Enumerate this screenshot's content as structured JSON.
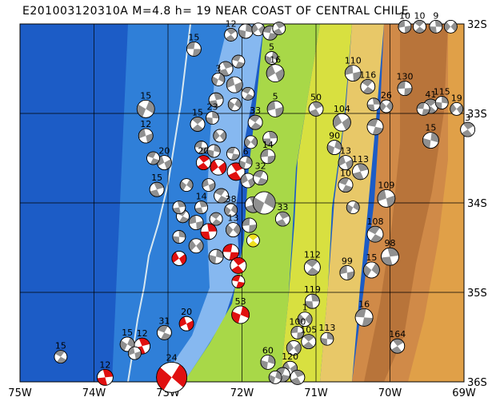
{
  "title": "E201003120310A  M=4.8  h= 19  NEAR COAST OF CENTRAL CHILE",
  "map": {
    "lon_range": [
      -75,
      -69
    ],
    "lat_range": [
      -36,
      -32
    ],
    "lon_ticks": [
      {
        "value": -75,
        "label": "75W"
      },
      {
        "value": -74,
        "label": "74W"
      },
      {
        "value": -73,
        "label": "73W"
      },
      {
        "value": -72,
        "label": "72W"
      },
      {
        "value": -71,
        "label": "71W"
      },
      {
        "value": -70,
        "label": "70W"
      },
      {
        "value": -69,
        "label": "69W"
      }
    ],
    "lat_ticks": [
      {
        "value": -32,
        "label": "32S"
      },
      {
        "value": -33,
        "label": "33S"
      },
      {
        "value": -34,
        "label": "34S"
      },
      {
        "value": -35,
        "label": "35S"
      },
      {
        "value": -36,
        "label": "36S"
      }
    ],
    "colors": {
      "deep_ocean": "#1c5cc6",
      "ocean": "#2f7fd8",
      "shelf": "#86b8f0",
      "coast_low": "#a8d848",
      "lowland": "#d8e040",
      "hills": "#e8c868",
      "mountains": "#d08a48",
      "high_mountains": "#b8743a",
      "plateau": "#e0a048",
      "trench": "#d8e8f0",
      "focal_compression": "#e01010",
      "focal_tension": "#ffffff",
      "focal_gray": "#909090",
      "focal_yellow": "#f0e020"
    },
    "events": [
      {
        "lon": -72.65,
        "lat": -32.28,
        "size": 9,
        "depth": "15",
        "color": "gray"
      },
      {
        "lon": -72.15,
        "lat": -32.12,
        "size": 8,
        "depth": "12",
        "color": "gray"
      },
      {
        "lon": -71.95,
        "lat": -32.08,
        "size": 9,
        "depth": "",
        "color": "gray"
      },
      {
        "lon": -71.78,
        "lat": -32.06,
        "size": 8,
        "depth": "",
        "color": "gray"
      },
      {
        "lon": -71.62,
        "lat": -32.1,
        "size": 9,
        "depth": "",
        "color": "gray"
      },
      {
        "lon": -71.5,
        "lat": -32.05,
        "size": 8,
        "depth": "",
        "color": "gray"
      },
      {
        "lon": -71.6,
        "lat": -32.38,
        "size": 8,
        "depth": "5",
        "color": "gray"
      },
      {
        "lon": -71.55,
        "lat": -32.55,
        "size": 11,
        "depth": "16",
        "color": "gray"
      },
      {
        "lon": -72.05,
        "lat": -32.42,
        "size": 8,
        "depth": "",
        "color": "gray"
      },
      {
        "lon": -72.22,
        "lat": -32.5,
        "size": 9,
        "depth": "",
        "color": "gray"
      },
      {
        "lon": -72.32,
        "lat": -32.62,
        "size": 8,
        "depth": "3",
        "color": "gray"
      },
      {
        "lon": -72.1,
        "lat": -32.68,
        "size": 10,
        "depth": "",
        "color": "gray"
      },
      {
        "lon": -71.92,
        "lat": -32.78,
        "size": 8,
        "depth": "",
        "color": "gray"
      },
      {
        "lon": -72.35,
        "lat": -32.85,
        "size": 9,
        "depth": "",
        "color": "gray"
      },
      {
        "lon": -72.1,
        "lat": -32.9,
        "size": 8,
        "depth": "",
        "color": "gray"
      },
      {
        "lon": -71.55,
        "lat": -32.95,
        "size": 10,
        "depth": "5",
        "color": "gray"
      },
      {
        "lon": -71.82,
        "lat": -33.1,
        "size": 9,
        "depth": "33",
        "color": "gray"
      },
      {
        "lon": -71.62,
        "lat": -33.28,
        "size": 9,
        "depth": "",
        "color": "gray"
      },
      {
        "lon": -71.88,
        "lat": -33.32,
        "size": 8,
        "depth": "",
        "color": "gray"
      },
      {
        "lon": -71.65,
        "lat": -33.48,
        "size": 9,
        "depth": "14",
        "color": "gray"
      },
      {
        "lon": -72.6,
        "lat": -33.12,
        "size": 9,
        "depth": "15",
        "color": "gray"
      },
      {
        "lon": -72.4,
        "lat": -33.05,
        "size": 8,
        "depth": "23",
        "color": "gray"
      },
      {
        "lon": -72.3,
        "lat": -33.25,
        "size": 8,
        "depth": "",
        "color": "gray"
      },
      {
        "lon": -72.55,
        "lat": -33.38,
        "size": 8,
        "depth": "",
        "color": "gray"
      },
      {
        "lon": -72.52,
        "lat": -33.55,
        "size": 9,
        "depth": "20",
        "color": "red"
      },
      {
        "lon": -72.38,
        "lat": -33.42,
        "size": 8,
        "depth": "",
        "color": "gray"
      },
      {
        "lon": -72.32,
        "lat": -33.6,
        "size": 10,
        "depth": "",
        "color": "red"
      },
      {
        "lon": -72.12,
        "lat": -33.45,
        "size": 8,
        "depth": "",
        "color": "gray"
      },
      {
        "lon": -72.08,
        "lat": -33.65,
        "size": 11,
        "depth": "",
        "color": "red"
      },
      {
        "lon": -71.95,
        "lat": -33.55,
        "size": 8,
        "depth": "6",
        "color": "gray"
      },
      {
        "lon": -71.92,
        "lat": -33.75,
        "size": 9,
        "depth": "",
        "color": "gray"
      },
      {
        "lon": -71.75,
        "lat": -33.72,
        "size": 9,
        "depth": "32",
        "color": "gray"
      },
      {
        "lon": -71.85,
        "lat": -34.02,
        "size": 10,
        "depth": "",
        "color": "gray"
      },
      {
        "lon": -71.7,
        "lat": -34.0,
        "size": 14,
        "depth": "",
        "color": "gray"
      },
      {
        "lon": -72.45,
        "lat": -33.8,
        "size": 8,
        "depth": "",
        "color": "gray"
      },
      {
        "lon": -72.28,
        "lat": -33.92,
        "size": 9,
        "depth": "",
        "color": "gray"
      },
      {
        "lon": -72.55,
        "lat": -34.05,
        "size": 8,
        "depth": "14",
        "color": "gray"
      },
      {
        "lon": -72.15,
        "lat": -34.08,
        "size": 8,
        "depth": "38",
        "color": "gray"
      },
      {
        "lon": -72.62,
        "lat": -34.22,
        "size": 9,
        "depth": "",
        "color": "gray"
      },
      {
        "lon": -72.35,
        "lat": -34.18,
        "size": 8,
        "depth": "",
        "color": "gray"
      },
      {
        "lon": -72.45,
        "lat": -34.32,
        "size": 10,
        "depth": "",
        "color": "red"
      },
      {
        "lon": -72.12,
        "lat": -34.3,
        "size": 9,
        "depth": "13",
        "color": "gray"
      },
      {
        "lon": -71.9,
        "lat": -34.25,
        "size": 9,
        "depth": "",
        "color": "gray"
      },
      {
        "lon": -71.85,
        "lat": -34.42,
        "size": 8,
        "depth": "",
        "color": "yellow"
      },
      {
        "lon": -72.85,
        "lat": -34.38,
        "size": 8,
        "depth": "",
        "color": "gray"
      },
      {
        "lon": -72.62,
        "lat": -34.48,
        "size": 9,
        "depth": "",
        "color": "gray"
      },
      {
        "lon": -72.15,
        "lat": -34.55,
        "size": 10,
        "depth": "",
        "color": "red"
      },
      {
        "lon": -72.05,
        "lat": -34.7,
        "size": 10,
        "depth": "",
        "color": "red"
      },
      {
        "lon": -72.35,
        "lat": -34.6,
        "size": 9,
        "depth": "",
        "color": "gray"
      },
      {
        "lon": -72.85,
        "lat": -34.62,
        "size": 9,
        "depth": "",
        "color": "red"
      },
      {
        "lon": -72.05,
        "lat": -34.88,
        "size": 8,
        "depth": "",
        "color": "red"
      },
      {
        "lon": -71.45,
        "lat": -34.18,
        "size": 9,
        "depth": "33",
        "color": "gray"
      },
      {
        "lon": -72.02,
        "lat": -35.25,
        "size": 11,
        "depth": "53",
        "color": "red"
      },
      {
        "lon": -73.05,
        "lat": -33.55,
        "size": 9,
        "depth": "20",
        "color": "gray"
      },
      {
        "lon": -73.2,
        "lat": -33.5,
        "size": 8,
        "depth": "",
        "color": "gray"
      },
      {
        "lon": -73.15,
        "lat": -33.85,
        "size": 9,
        "depth": "15",
        "color": "gray"
      },
      {
        "lon": -73.3,
        "lat": -32.95,
        "size": 11,
        "depth": "15",
        "color": "gray"
      },
      {
        "lon": -73.3,
        "lat": -33.25,
        "size": 9,
        "depth": "12",
        "color": "gray"
      },
      {
        "lon": -72.8,
        "lat": -34.15,
        "size": 8,
        "depth": "",
        "color": "gray"
      },
      {
        "lon": -72.85,
        "lat": -34.05,
        "size": 8,
        "depth": "",
        "color": "gray"
      },
      {
        "lon": -72.75,
        "lat": -33.8,
        "size": 8,
        "depth": "",
        "color": "gray"
      },
      {
        "lon": -70.5,
        "lat": -32.55,
        "size": 10,
        "depth": "110",
        "color": "gray"
      },
      {
        "lon": -70.3,
        "lat": -32.7,
        "size": 9,
        "depth": "116",
        "color": "gray"
      },
      {
        "lon": -70.22,
        "lat": -32.9,
        "size": 8,
        "depth": "",
        "color": "gray"
      },
      {
        "lon": -70.05,
        "lat": -32.92,
        "size": 8,
        "depth": "26",
        "color": "gray"
      },
      {
        "lon": -69.8,
        "lat": -32.72,
        "size": 9,
        "depth": "130",
        "color": "gray"
      },
      {
        "lon": -69.45,
        "lat": -32.92,
        "size": 9,
        "depth": "41",
        "color": "gray"
      },
      {
        "lon": -69.3,
        "lat": -32.88,
        "size": 8,
        "depth": "115",
        "color": "gray"
      },
      {
        "lon": -69.1,
        "lat": -32.95,
        "size": 8,
        "depth": "19",
        "color": "gray"
      },
      {
        "lon": -69.55,
        "lat": -32.95,
        "size": 8,
        "depth": "",
        "color": "gray"
      },
      {
        "lon": -68.95,
        "lat": -33.18,
        "size": 9,
        "depth": "3",
        "color": "gray"
      },
      {
        "lon": -69.45,
        "lat": -33.3,
        "size": 10,
        "depth": "15",
        "color": "gray"
      },
      {
        "lon": -70.65,
        "lat": -33.1,
        "size": 11,
        "depth": "104",
        "color": "gray"
      },
      {
        "lon": -70.2,
        "lat": -33.15,
        "size": 10,
        "depth": "",
        "color": "gray"
      },
      {
        "lon": -71.0,
        "lat": -32.95,
        "size": 9,
        "depth": "50",
        "color": "gray"
      },
      {
        "lon": -70.75,
        "lat": -33.38,
        "size": 9,
        "depth": "90",
        "color": "gray"
      },
      {
        "lon": -70.6,
        "lat": -33.55,
        "size": 9,
        "depth": "13",
        "color": "gray"
      },
      {
        "lon": -70.6,
        "lat": -33.8,
        "size": 9,
        "depth": "10",
        "color": "gray"
      },
      {
        "lon": -70.4,
        "lat": -33.65,
        "size": 10,
        "depth": "113",
        "color": "gray"
      },
      {
        "lon": -70.5,
        "lat": -34.05,
        "size": 8,
        "depth": "",
        "color": "gray"
      },
      {
        "lon": -70.05,
        "lat": -33.95,
        "size": 11,
        "depth": "109",
        "color": "gray"
      },
      {
        "lon": -70.2,
        "lat": -34.35,
        "size": 10,
        "depth": "108",
        "color": "gray"
      },
      {
        "lon": -70.0,
        "lat": -34.6,
        "size": 11,
        "depth": "98",
        "color": "gray"
      },
      {
        "lon": -70.25,
        "lat": -34.75,
        "size": 10,
        "depth": "15",
        "color": "gray"
      },
      {
        "lon": -70.58,
        "lat": -34.78,
        "size": 9,
        "depth": "99",
        "color": "gray"
      },
      {
        "lon": -71.05,
        "lat": -34.72,
        "size": 10,
        "depth": "112",
        "color": "gray"
      },
      {
        "lon": -71.05,
        "lat": -35.1,
        "size": 9,
        "depth": "119",
        "color": "gray"
      },
      {
        "lon": -71.15,
        "lat": -35.3,
        "size": 9,
        "depth": "1",
        "color": "gray"
      },
      {
        "lon": -71.25,
        "lat": -35.45,
        "size": 8,
        "depth": "100",
        "color": "gray"
      },
      {
        "lon": -71.1,
        "lat": -35.55,
        "size": 9,
        "depth": "105",
        "color": "gray"
      },
      {
        "lon": -70.85,
        "lat": -35.52,
        "size": 8,
        "depth": "113",
        "color": "gray"
      },
      {
        "lon": -71.3,
        "lat": -35.62,
        "size": 9,
        "depth": "",
        "color": "gray"
      },
      {
        "lon": -70.35,
        "lat": -35.28,
        "size": 11,
        "depth": "16",
        "color": "gray"
      },
      {
        "lon": -69.9,
        "lat": -35.6,
        "size": 9,
        "depth": "164",
        "color": "gray"
      },
      {
        "lon": -71.65,
        "lat": -35.78,
        "size": 9,
        "depth": "60",
        "color": "gray"
      },
      {
        "lon": -71.35,
        "lat": -35.85,
        "size": 9,
        "depth": "120",
        "color": "gray"
      },
      {
        "lon": -71.45,
        "lat": -35.92,
        "size": 9,
        "depth": "",
        "color": "gray"
      },
      {
        "lon": -71.25,
        "lat": -35.95,
        "size": 9,
        "depth": "",
        "color": "gray"
      },
      {
        "lon": -71.55,
        "lat": -35.95,
        "size": 8,
        "depth": "",
        "color": "gray"
      },
      {
        "lon": -72.75,
        "lat": -35.35,
        "size": 9,
        "depth": "20",
        "color": "red"
      },
      {
        "lon": -73.05,
        "lat": -35.45,
        "size": 9,
        "depth": "31",
        "color": "gray"
      },
      {
        "lon": -73.35,
        "lat": -35.6,
        "size": 10,
        "depth": "12",
        "color": "red"
      },
      {
        "lon": -73.55,
        "lat": -35.58,
        "size": 9,
        "depth": "15",
        "color": "gray"
      },
      {
        "lon": -73.45,
        "lat": -35.68,
        "size": 8,
        "depth": "",
        "color": "gray"
      },
      {
        "lon": -74.45,
        "lat": -35.72,
        "size": 8,
        "depth": "15",
        "color": "gray"
      },
      {
        "lon": -73.85,
        "lat": -35.95,
        "size": 10,
        "depth": "12",
        "color": "red"
      },
      {
        "lon": -72.95,
        "lat": -35.95,
        "size": 19,
        "depth": "24",
        "color": "red"
      },
      {
        "lon": -69.8,
        "lat": -32.03,
        "size": 8,
        "depth": "10",
        "color": "gray"
      },
      {
        "lon": -69.6,
        "lat": -32.03,
        "size": 8,
        "depth": "10",
        "color": "gray"
      },
      {
        "lon": -69.38,
        "lat": -32.03,
        "size": 8,
        "depth": "9",
        "color": "gray"
      },
      {
        "lon": -69.18,
        "lat": -32.03,
        "size": 8,
        "depth": "",
        "color": "gray"
      }
    ]
  }
}
